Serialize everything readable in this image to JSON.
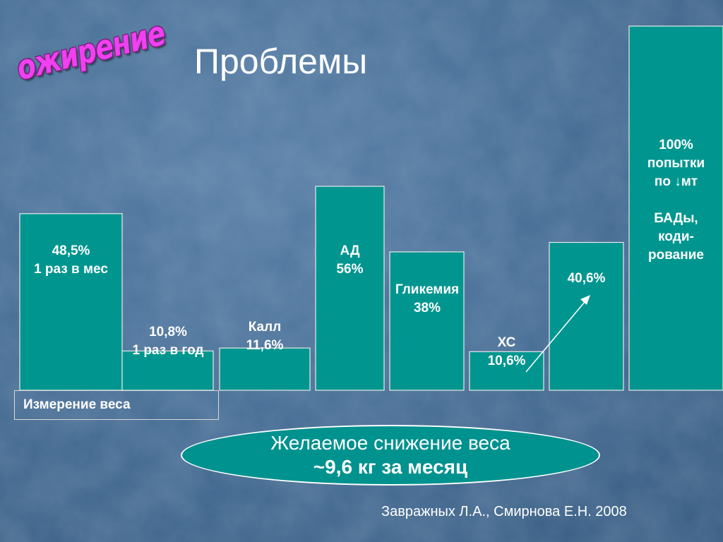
{
  "header": {
    "stamp": "ожирение",
    "title": "Проблемы"
  },
  "chart_data": {
    "type": "bar",
    "title": "Проблемы",
    "unit": "%",
    "bar_color": "#00968f",
    "outline_color": "#e8e8e8",
    "bars": [
      {
        "label": "48,5%\n1 раз в мес",
        "value": 48.5
      },
      {
        "label": "10,8%\n1 раз в год",
        "value": 10.8
      },
      {
        "label": "Калл\n11,6%",
        "value": 11.6
      },
      {
        "label": "АД\n56%",
        "value": 56
      },
      {
        "label": "Гликемия\n38%",
        "value": 38
      },
      {
        "label": "ХС\n10,6%",
        "value": 10.6
      },
      {
        "label": "40,6%",
        "value": 40.6
      },
      {
        "label": "100%\nпопытки\nпо ↓мт\n\nБАДы,\n коди-\nрование",
        "value": 100
      }
    ]
  },
  "measure_label": "Измерение веса",
  "goal": {
    "line1": "Желаемое снижение веса",
    "line2": "~9,6 кг за месяц"
  },
  "citation": "Завражных Л.А., Смирнова Е.Н. 2008"
}
